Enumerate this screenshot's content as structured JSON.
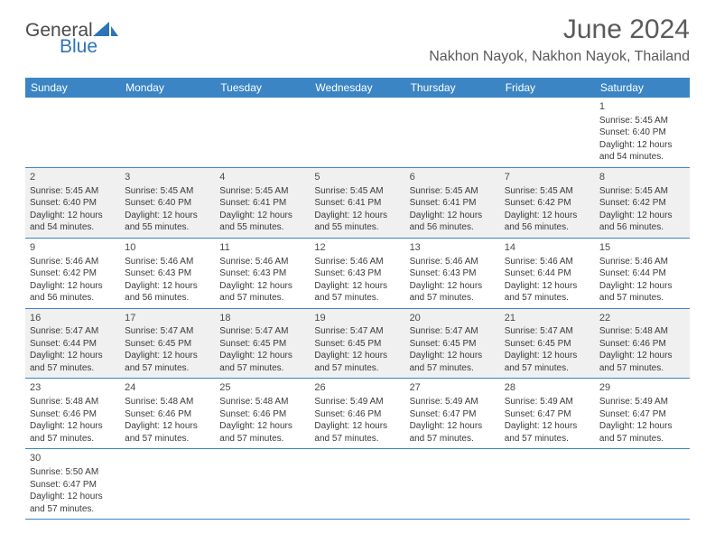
{
  "logo": {
    "general": "General",
    "blue": "Blue"
  },
  "title": "June 2024",
  "location": "Nakhon Nayok, Nakhon Nayok, Thailand",
  "colors": {
    "header_bar": "#3b85c5",
    "header_text": "#ffffff",
    "shaded_cell": "#f0f0f0",
    "border": "#3b85c5",
    "text": "#3a3a3a",
    "logo_blue": "#2d74b8"
  },
  "day_headers": [
    "Sunday",
    "Monday",
    "Tuesday",
    "Wednesday",
    "Thursday",
    "Friday",
    "Saturday"
  ],
  "weeks": [
    [
      {
        "blank": true
      },
      {
        "blank": true
      },
      {
        "blank": true
      },
      {
        "blank": true
      },
      {
        "blank": true
      },
      {
        "blank": true
      },
      {
        "n": "1",
        "sr": "Sunrise: 5:45 AM",
        "ss": "Sunset: 6:40 PM",
        "d1": "Daylight: 12 hours",
        "d2": "and 54 minutes."
      }
    ],
    [
      {
        "n": "2",
        "sr": "Sunrise: 5:45 AM",
        "ss": "Sunset: 6:40 PM",
        "d1": "Daylight: 12 hours",
        "d2": "and 54 minutes."
      },
      {
        "n": "3",
        "sr": "Sunrise: 5:45 AM",
        "ss": "Sunset: 6:40 PM",
        "d1": "Daylight: 12 hours",
        "d2": "and 55 minutes."
      },
      {
        "n": "4",
        "sr": "Sunrise: 5:45 AM",
        "ss": "Sunset: 6:41 PM",
        "d1": "Daylight: 12 hours",
        "d2": "and 55 minutes."
      },
      {
        "n": "5",
        "sr": "Sunrise: 5:45 AM",
        "ss": "Sunset: 6:41 PM",
        "d1": "Daylight: 12 hours",
        "d2": "and 55 minutes."
      },
      {
        "n": "6",
        "sr": "Sunrise: 5:45 AM",
        "ss": "Sunset: 6:41 PM",
        "d1": "Daylight: 12 hours",
        "d2": "and 56 minutes."
      },
      {
        "n": "7",
        "sr": "Sunrise: 5:45 AM",
        "ss": "Sunset: 6:42 PM",
        "d1": "Daylight: 12 hours",
        "d2": "and 56 minutes."
      },
      {
        "n": "8",
        "sr": "Sunrise: 5:45 AM",
        "ss": "Sunset: 6:42 PM",
        "d1": "Daylight: 12 hours",
        "d2": "and 56 minutes."
      }
    ],
    [
      {
        "n": "9",
        "sr": "Sunrise: 5:46 AM",
        "ss": "Sunset: 6:42 PM",
        "d1": "Daylight: 12 hours",
        "d2": "and 56 minutes."
      },
      {
        "n": "10",
        "sr": "Sunrise: 5:46 AM",
        "ss": "Sunset: 6:43 PM",
        "d1": "Daylight: 12 hours",
        "d2": "and 56 minutes."
      },
      {
        "n": "11",
        "sr": "Sunrise: 5:46 AM",
        "ss": "Sunset: 6:43 PM",
        "d1": "Daylight: 12 hours",
        "d2": "and 57 minutes."
      },
      {
        "n": "12",
        "sr": "Sunrise: 5:46 AM",
        "ss": "Sunset: 6:43 PM",
        "d1": "Daylight: 12 hours",
        "d2": "and 57 minutes."
      },
      {
        "n": "13",
        "sr": "Sunrise: 5:46 AM",
        "ss": "Sunset: 6:43 PM",
        "d1": "Daylight: 12 hours",
        "d2": "and 57 minutes."
      },
      {
        "n": "14",
        "sr": "Sunrise: 5:46 AM",
        "ss": "Sunset: 6:44 PM",
        "d1": "Daylight: 12 hours",
        "d2": "and 57 minutes."
      },
      {
        "n": "15",
        "sr": "Sunrise: 5:46 AM",
        "ss": "Sunset: 6:44 PM",
        "d1": "Daylight: 12 hours",
        "d2": "and 57 minutes."
      }
    ],
    [
      {
        "n": "16",
        "sr": "Sunrise: 5:47 AM",
        "ss": "Sunset: 6:44 PM",
        "d1": "Daylight: 12 hours",
        "d2": "and 57 minutes."
      },
      {
        "n": "17",
        "sr": "Sunrise: 5:47 AM",
        "ss": "Sunset: 6:45 PM",
        "d1": "Daylight: 12 hours",
        "d2": "and 57 minutes."
      },
      {
        "n": "18",
        "sr": "Sunrise: 5:47 AM",
        "ss": "Sunset: 6:45 PM",
        "d1": "Daylight: 12 hours",
        "d2": "and 57 minutes."
      },
      {
        "n": "19",
        "sr": "Sunrise: 5:47 AM",
        "ss": "Sunset: 6:45 PM",
        "d1": "Daylight: 12 hours",
        "d2": "and 57 minutes."
      },
      {
        "n": "20",
        "sr": "Sunrise: 5:47 AM",
        "ss": "Sunset: 6:45 PM",
        "d1": "Daylight: 12 hours",
        "d2": "and 57 minutes."
      },
      {
        "n": "21",
        "sr": "Sunrise: 5:47 AM",
        "ss": "Sunset: 6:45 PM",
        "d1": "Daylight: 12 hours",
        "d2": "and 57 minutes."
      },
      {
        "n": "22",
        "sr": "Sunrise: 5:48 AM",
        "ss": "Sunset: 6:46 PM",
        "d1": "Daylight: 12 hours",
        "d2": "and 57 minutes."
      }
    ],
    [
      {
        "n": "23",
        "sr": "Sunrise: 5:48 AM",
        "ss": "Sunset: 6:46 PM",
        "d1": "Daylight: 12 hours",
        "d2": "and 57 minutes."
      },
      {
        "n": "24",
        "sr": "Sunrise: 5:48 AM",
        "ss": "Sunset: 6:46 PM",
        "d1": "Daylight: 12 hours",
        "d2": "and 57 minutes."
      },
      {
        "n": "25",
        "sr": "Sunrise: 5:48 AM",
        "ss": "Sunset: 6:46 PM",
        "d1": "Daylight: 12 hours",
        "d2": "and 57 minutes."
      },
      {
        "n": "26",
        "sr": "Sunrise: 5:49 AM",
        "ss": "Sunset: 6:46 PM",
        "d1": "Daylight: 12 hours",
        "d2": "and 57 minutes."
      },
      {
        "n": "27",
        "sr": "Sunrise: 5:49 AM",
        "ss": "Sunset: 6:47 PM",
        "d1": "Daylight: 12 hours",
        "d2": "and 57 minutes."
      },
      {
        "n": "28",
        "sr": "Sunrise: 5:49 AM",
        "ss": "Sunset: 6:47 PM",
        "d1": "Daylight: 12 hours",
        "d2": "and 57 minutes."
      },
      {
        "n": "29",
        "sr": "Sunrise: 5:49 AM",
        "ss": "Sunset: 6:47 PM",
        "d1": "Daylight: 12 hours",
        "d2": "and 57 minutes."
      }
    ],
    [
      {
        "n": "30",
        "sr": "Sunrise: 5:50 AM",
        "ss": "Sunset: 6:47 PM",
        "d1": "Daylight: 12 hours",
        "d2": "and 57 minutes."
      },
      {
        "blank": true
      },
      {
        "blank": true
      },
      {
        "blank": true
      },
      {
        "blank": true
      },
      {
        "blank": true
      },
      {
        "blank": true
      }
    ]
  ]
}
